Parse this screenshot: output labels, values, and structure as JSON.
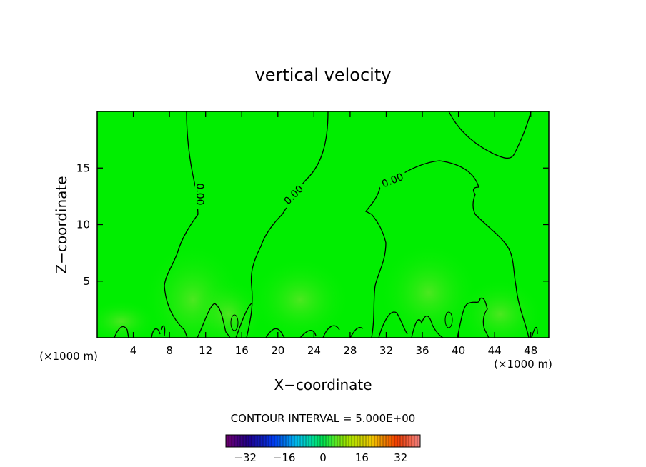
{
  "chart_data": {
    "type": "heatmap",
    "title": "vertical velocity",
    "xlabel": "X−coordinate",
    "ylabel": "Z−coordinate",
    "x_unit_left": "(×1000 m)",
    "x_unit_right": "(×1000 m)",
    "xlim": [
      0,
      50
    ],
    "ylim": [
      0,
      20
    ],
    "x_ticks": [
      4,
      8,
      12,
      16,
      20,
      24,
      28,
      32,
      36,
      40,
      44,
      48
    ],
    "y_ticks": [
      5,
      10,
      15
    ],
    "contour_labels": [
      "0.00",
      "0.00",
      "0.00"
    ],
    "contour_interval_text": "CONTOUR INTERVAL = 5.000E+00",
    "colorbar": {
      "range": [
        -40,
        40
      ],
      "ticks": [
        -32,
        -16,
        0,
        16,
        32
      ],
      "tick_labels": [
        "−32",
        "−16",
        "0",
        "16",
        "32"
      ]
    },
    "colors": {
      "field": "#00ee00",
      "warm": "#66e63a",
      "line": "#000000"
    }
  }
}
